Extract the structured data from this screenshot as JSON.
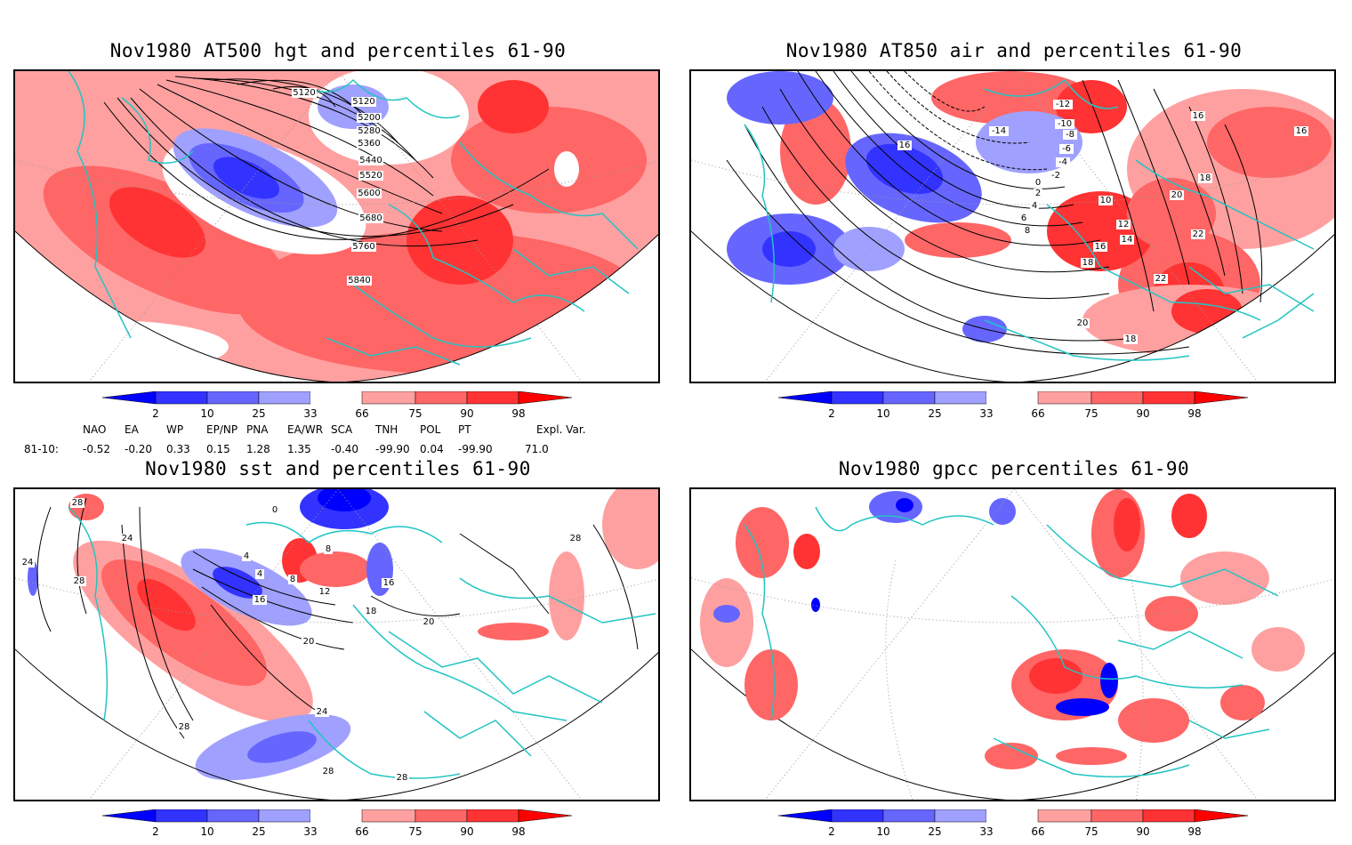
{
  "panels": {
    "p1": {
      "title": "Nov1980 AT500 hgt and percentiles 61-90",
      "contour_labels": [
        "5120",
        "5120",
        "5200",
        "5280",
        "5360",
        "5440",
        "5520",
        "5600",
        "5680",
        "5760",
        "5840"
      ]
    },
    "p2": {
      "title": "Nov1980 AT850 air and percentiles 61-90",
      "contour_labels": [
        "-14",
        "-12",
        "-10",
        "-8",
        "-6",
        "-4",
        "-2",
        "0",
        "2",
        "4",
        "6",
        "8",
        "10",
        "12",
        "14",
        "16",
        "16",
        "16",
        "16",
        "18",
        "18",
        "18",
        "20",
        "20",
        "22",
        "22"
      ]
    },
    "p3": {
      "title": "Nov1980 sst and percentiles 61-90",
      "contour_labels": [
        "28",
        "24",
        "28",
        "24",
        "0",
        "4",
        "4",
        "8",
        "8",
        "12",
        "16",
        "16",
        "18",
        "20",
        "20",
        "24",
        "28",
        "28",
        "28",
        "28"
      ]
    },
    "p4": {
      "title": "Nov1980 gpcc percentiles 61-90",
      "contour_labels": []
    }
  },
  "colorbar": {
    "ticks": [
      "2",
      "10",
      "25",
      "33",
      "66",
      "75",
      "90",
      "98"
    ],
    "colors": [
      "#0000ff",
      "#3333ff",
      "#6666ff",
      "#a0a0ff",
      "#ffffff",
      "#ffa0a0",
      "#ff6666",
      "#ff3333",
      "#ff0000"
    ]
  },
  "indices": {
    "headers": [
      "NAO",
      "EA",
      "WP",
      "EP/NP",
      "PNA",
      "EA/WR",
      "SCA",
      "TNH",
      "POL",
      "PT",
      "Expl. Var."
    ],
    "row_label": "81-10:",
    "values": [
      "-0.52",
      "-0.20",
      "0.33",
      "0.15",
      "1.28",
      "1.35",
      "-0.40",
      "-99.90",
      "0.04",
      "-99.90",
      "71.0"
    ]
  },
  "map_colors": {
    "coast": "#22c4c4",
    "contour": "#000000"
  }
}
